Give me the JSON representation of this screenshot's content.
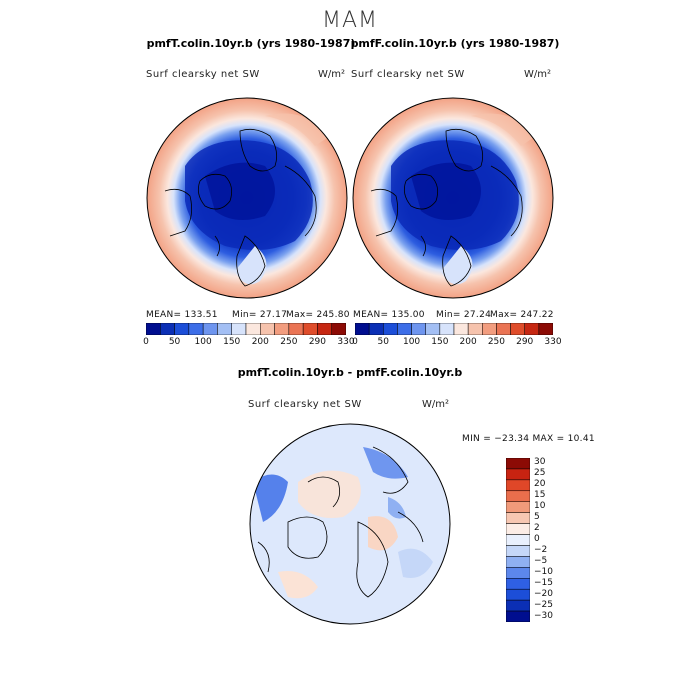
{
  "figure": {
    "title": "MAM",
    "panels": [
      {
        "title": "pmfT.colin.10yr.b (yrs 1980-1987)",
        "variable": "Surf clearsky net SW",
        "units": "W/m²",
        "mean_label": "MEAN= 133.51",
        "min_label": "Min=   27.17",
        "max_label": "Max= 245.80"
      },
      {
        "title": "pmfF.colin.10yr.b (yrs 1980-1987)",
        "variable": "Surf clearsky net SW",
        "units": "W/m²",
        "mean_label": "MEAN= 135.00",
        "min_label": "Min=   27.24",
        "max_label": "Max= 247.22"
      },
      {
        "title": "pmfT.colin.10yr.b - pmfF.colin.10yr.b",
        "variable": "Surf clearsky net SW",
        "units": "W/m²",
        "minmax_label": "MIN = −23.34  MAX =  10.41"
      }
    ]
  },
  "colors": {
    "abs_scale": [
      "#000e8f",
      "#0b2fb5",
      "#1c4ed8",
      "#3d6ee8",
      "#6e95ef",
      "#a3bff4",
      "#d7e3fb",
      "#fbe7de",
      "#f6c3ad",
      "#f29d7f",
      "#ea7454",
      "#df4d2b",
      "#c62712",
      "#8c0b05"
    ],
    "diff_scale": [
      "#000e8f",
      "#0b2fb5",
      "#1c4ed8",
      "#2f60e4",
      "#5c87ec",
      "#8fb0f2",
      "#c5d7f8",
      "#e9f0fd",
      "#fcede6",
      "#f7c7b2",
      "#f19a7a",
      "#ea6e4c",
      "#e04728",
      "#c82311",
      "#8c0b05"
    ]
  },
  "chart_data": [
    {
      "type": "heatmap",
      "title": "pmfT.colin.10yr.b (yrs 1980-1987)",
      "variable": "Surf clearsky net SW",
      "units": "W/m²",
      "projection": "north polar stereographic",
      "mean": 133.51,
      "min": 27.17,
      "max": 245.8,
      "contour_levels": [
        0,
        25,
        50,
        75,
        100,
        125,
        150,
        175,
        200,
        225,
        250,
        270,
        290,
        310,
        330
      ],
      "colorbar_tick_labels": [
        "0",
        "50",
        "100",
        "150",
        "200",
        "250",
        "290",
        "330"
      ]
    },
    {
      "type": "heatmap",
      "title": "pmfF.colin.10yr.b (yrs 1980-1987)",
      "variable": "Surf clearsky net SW",
      "units": "W/m²",
      "projection": "north polar stereographic",
      "mean": 135.0,
      "min": 27.24,
      "max": 247.22,
      "contour_levels": [
        0,
        25,
        50,
        75,
        100,
        125,
        150,
        175,
        200,
        225,
        250,
        270,
        290,
        310,
        330
      ],
      "colorbar_tick_labels": [
        "0",
        "50",
        "100",
        "150",
        "200",
        "250",
        "290",
        "330"
      ]
    },
    {
      "type": "heatmap",
      "title": "pmfT.colin.10yr.b - pmfF.colin.10yr.b",
      "variable": "Surf clearsky net SW",
      "units": "W/m²",
      "projection": "north polar stereographic",
      "min": -23.34,
      "max": 10.41,
      "contour_levels": [
        -30,
        -25,
        -20,
        -15,
        -10,
        -5,
        -2,
        0,
        2,
        5,
        10,
        15,
        20,
        25,
        30
      ],
      "colorbar_tick_labels": [
        "30",
        "25",
        "20",
        "15",
        "10",
        "5",
        "2",
        "0",
        "−2",
        "−5",
        "−10",
        "−15",
        "−20",
        "−25",
        "−30"
      ]
    }
  ]
}
